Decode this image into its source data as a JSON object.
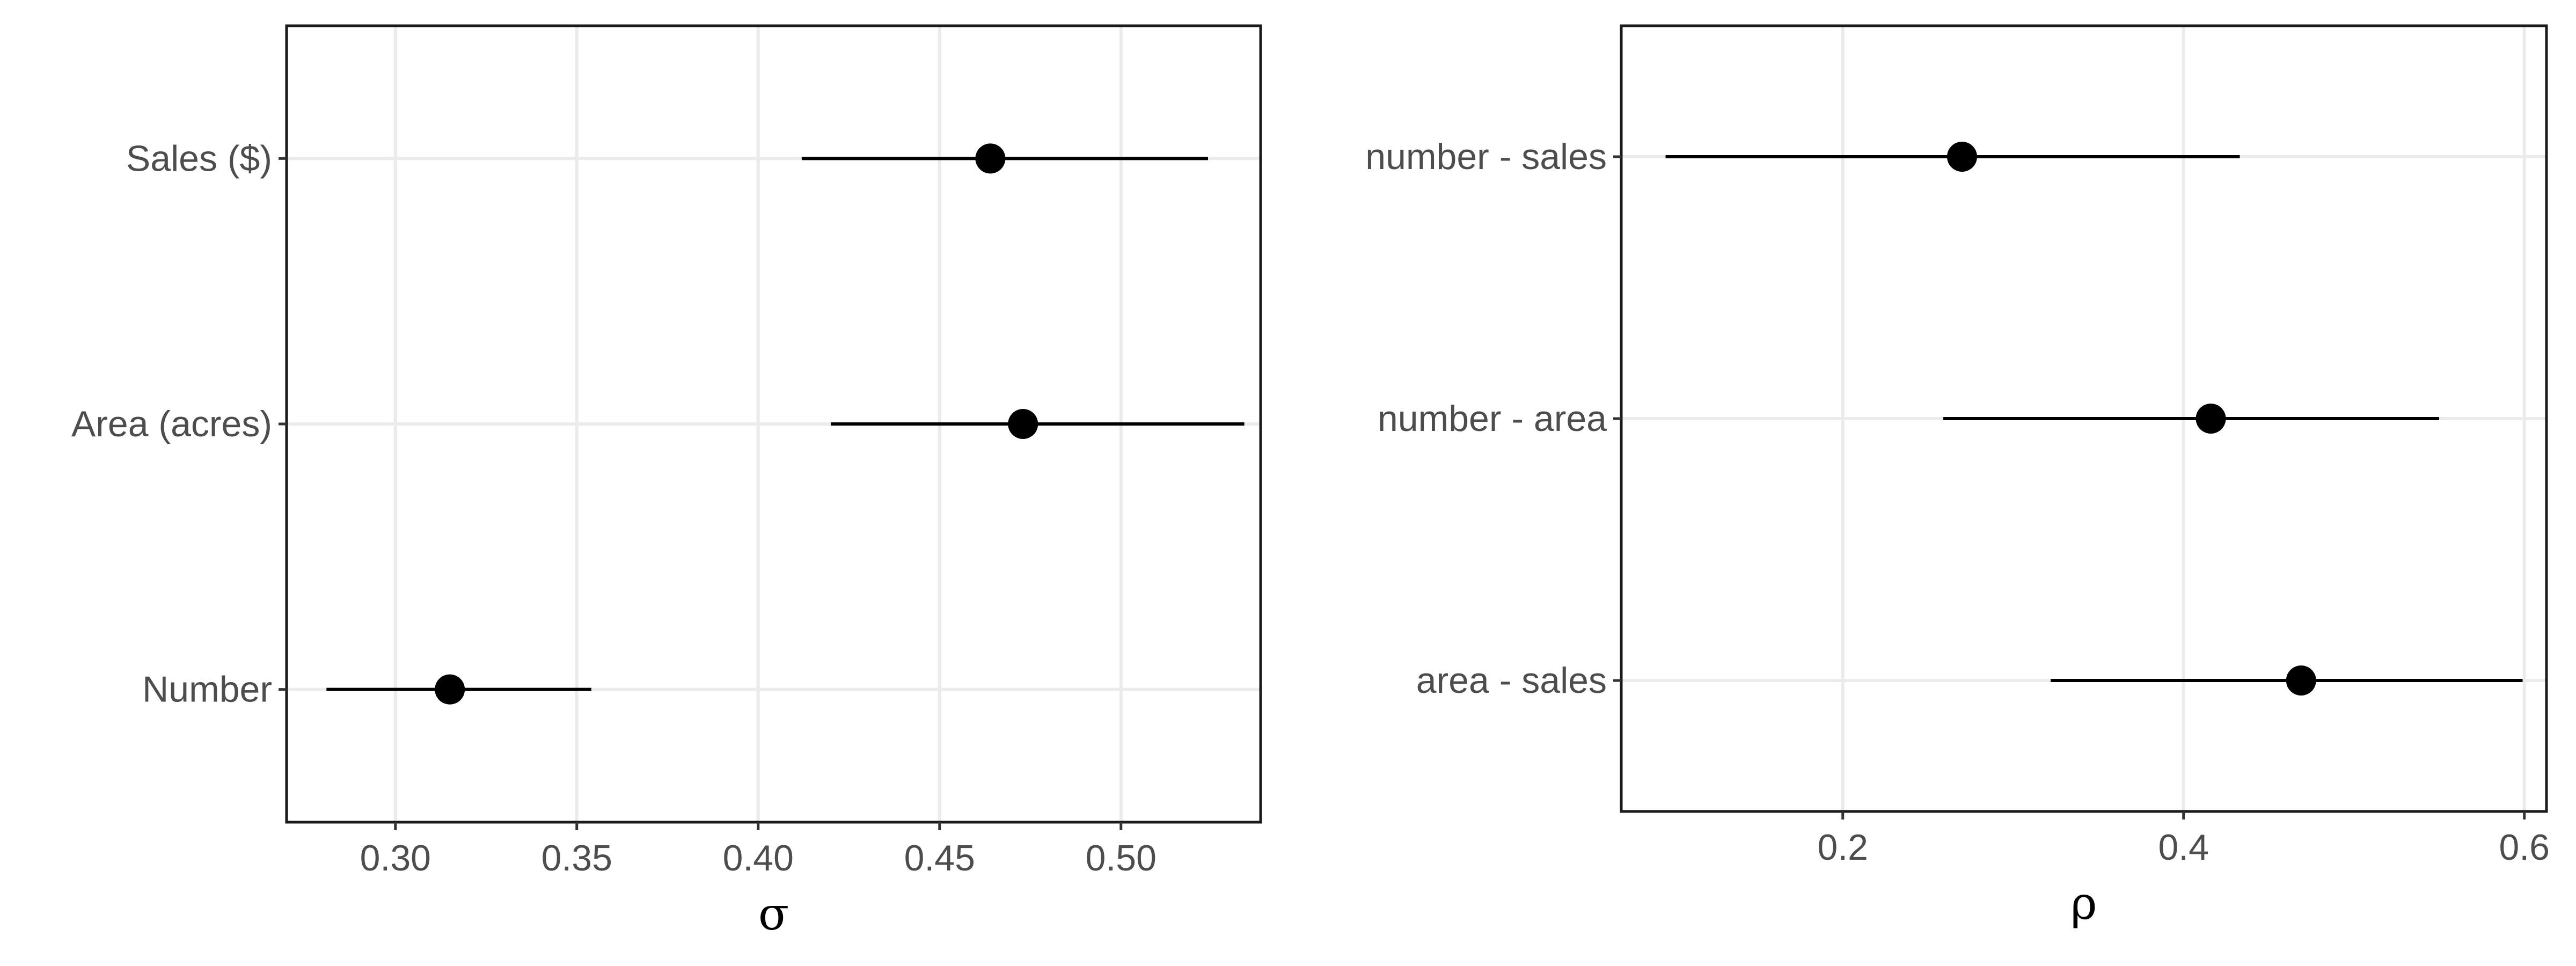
{
  "chart_data": [
    {
      "type": "pointrange",
      "title": "",
      "xlabel": "σ",
      "ylabel": "",
      "xlim": [
        0.27,
        0.5385
      ],
      "xticks": [
        0.3,
        0.35,
        0.4,
        0.45,
        0.5
      ],
      "xtick_labels": [
        "0.30",
        "0.35",
        "0.40",
        "0.45",
        "0.50"
      ],
      "grid": true,
      "categories": [
        "Sales ($)",
        "Area (acres)",
        "Number"
      ],
      "estimate": [
        0.464,
        0.473,
        0.315
      ],
      "lower": [
        0.412,
        0.42,
        0.281
      ],
      "upper": [
        0.524,
        0.534,
        0.354
      ]
    },
    {
      "type": "pointrange",
      "title": "",
      "xlabel": "ρ",
      "ylabel": "",
      "xlim": [
        0.07,
        0.613
      ],
      "xticks": [
        0.2,
        0.4,
        0.6
      ],
      "xtick_labels": [
        "0.2",
        "0.4",
        "0.6"
      ],
      "grid": true,
      "categories": [
        "number - sales",
        "number - area",
        "area - sales"
      ],
      "estimate": [
        0.27,
        0.416,
        0.469
      ],
      "lower": [
        0.096,
        0.259,
        0.322
      ],
      "upper": [
        0.433,
        0.55,
        0.599
      ]
    }
  ]
}
